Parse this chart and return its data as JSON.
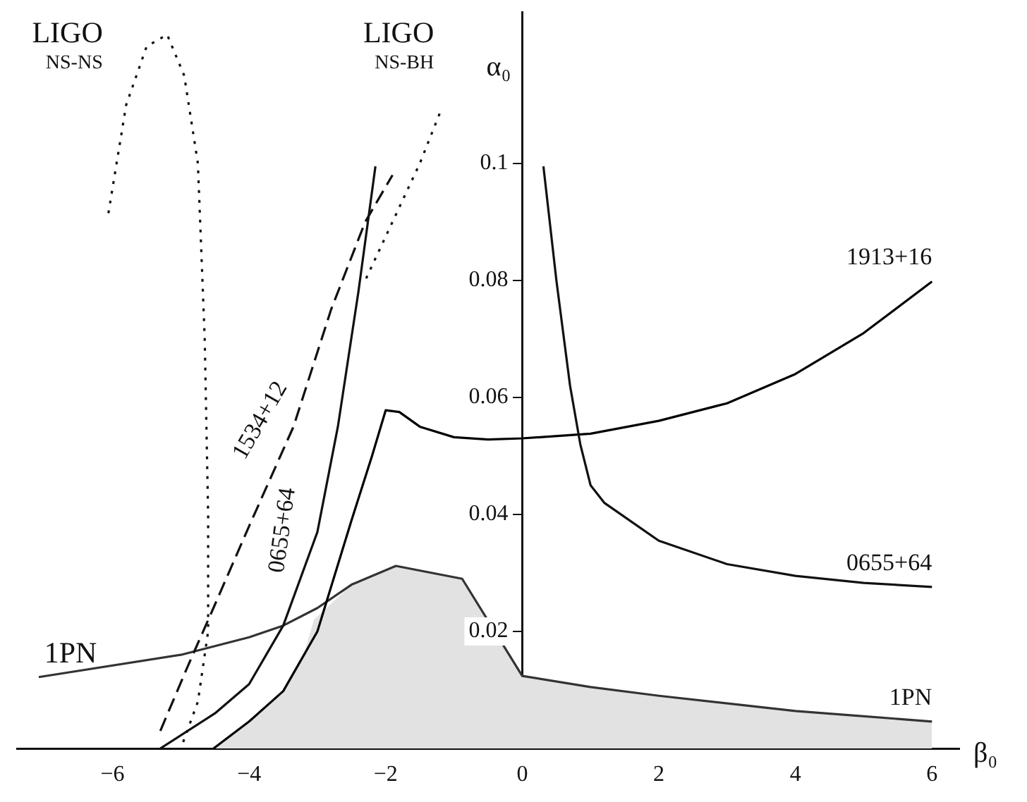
{
  "chart_data": {
    "type": "line",
    "xlabel": "β₀",
    "ylabel": "α₀",
    "xlim": [
      -7.4,
      6.4
    ],
    "ylim": [
      0,
      0.126
    ],
    "xticks": [
      -6,
      -4,
      -2,
      0,
      2,
      4,
      6
    ],
    "yticks": [
      0.02,
      0.04,
      0.06,
      0.08,
      0.1
    ],
    "grid": false,
    "legend": false,
    "marker": "none",
    "series": [
      {
        "type": "area",
        "color": "#e2e2e2",
        "x": [
          -4.52,
          -4,
          -3.5,
          -3.2,
          -3.05,
          -2.5,
          -1.85,
          -0.88,
          0,
          1,
          2,
          4,
          6
        ],
        "values": [
          0,
          0.0046,
          0.0098,
          0.016,
          0.022,
          0.028,
          0.0312,
          0.029,
          0.0124,
          0.0105,
          0.009,
          0.0064,
          0.0046
        ]
      },
      {
        "name": "1PN",
        "color": "#333333",
        "line_style": "solid",
        "x": [
          -7.08,
          -5,
          -4,
          -3.5,
          -3,
          -2.5,
          -1.85,
          -0.88,
          0,
          1,
          2,
          4,
          6
        ],
        "values": [
          0.0122,
          0.016,
          0.019,
          0.021,
          0.024,
          0.028,
          0.0312,
          0.029,
          0.0124,
          0.0105,
          0.009,
          0.0064,
          0.0046
        ]
      },
      {
        "name": "1913+16",
        "color": "#000000",
        "line_style": "solid",
        "x": [
          -4.52,
          -4,
          -3.5,
          -3,
          -2.5,
          -2.2,
          -2,
          -1.8,
          -1.5,
          -1,
          -0.5,
          0,
          1,
          2,
          3,
          4,
          5,
          6
        ],
        "values": [
          0,
          0.0046,
          0.0098,
          0.02,
          0.039,
          0.05,
          0.0578,
          0.0575,
          0.055,
          0.0532,
          0.0528,
          0.053,
          0.0538,
          0.056,
          0.059,
          0.064,
          0.071,
          0.0798
        ]
      },
      {
        "name": "0655+64",
        "color": "#111111",
        "line_style": "solid",
        "x": [
          0.31,
          0.5,
          0.7,
          0.85,
          1,
          1.2,
          2,
          3,
          4,
          5,
          6
        ],
        "values": [
          0.0995,
          0.08,
          0.062,
          0.052,
          0.045,
          0.042,
          0.0355,
          0.0315,
          0.0295,
          0.0283,
          0.0276
        ]
      },
      {
        "name": "0655+64",
        "color": "#111111",
        "line_style": "solid",
        "x": [
          -5.3,
          -4.5,
          -4,
          -3.5,
          -3,
          -2.7,
          -2.4,
          -2.15
        ],
        "values": [
          0,
          0.006,
          0.011,
          0.021,
          0.037,
          0.055,
          0.078,
          0.0995
        ]
      },
      {
        "name": "1534+12",
        "color": "#111111",
        "line_style": "dashed",
        "x": [
          -5.3,
          -4.9,
          -4.56,
          -4,
          -3.35,
          -2.8,
          -2.3,
          -1.9
        ],
        "values": [
          0.003,
          0.014,
          0.023,
          0.038,
          0.055,
          0.075,
          0.09,
          0.098
        ]
      },
      {
        "color": "#111111",
        "line_style": "dotted",
        "x": [
          -6.06,
          -5.8,
          -5.5,
          -5.2,
          -4.95,
          -4.75,
          -4.65,
          -4.6,
          -4.6,
          -4.75,
          -5
        ],
        "values": [
          0.0915,
          0.11,
          0.12,
          0.122,
          0.115,
          0.1,
          0.07,
          0.04,
          0.02,
          0.008,
          0
        ]
      },
      {
        "color": "#111111",
        "line_style": "dotted",
        "x": [
          -1.21,
          -1.5,
          -1.9,
          -2.3
        ],
        "values": [
          0.1085,
          0.1,
          0.09,
          0.08
        ]
      }
    ],
    "annotations": [
      "LIGO",
      "NS-NS",
      "LIGO",
      "NS-BH",
      {
        "text": "1PN",
        "x": -7.0,
        "y": 0.0135
      }
    ]
  }
}
